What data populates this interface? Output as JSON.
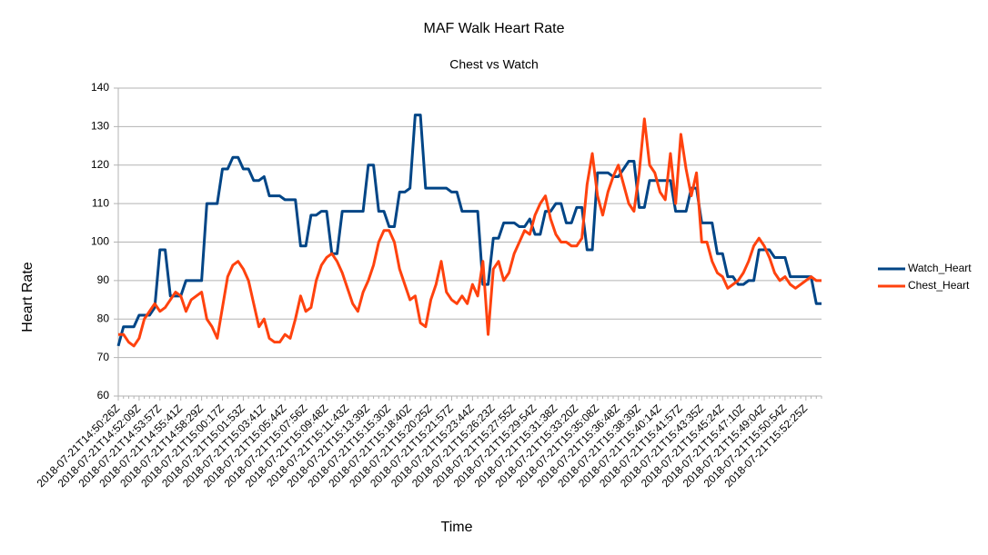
{
  "chart_data": {
    "type": "line",
    "title": "MAF Walk Heart Rate",
    "subtitle": "Chest vs Watch",
    "x_label": "Time",
    "y_label": "Heart Rate",
    "categories": [
      "2018-07-21T14:50:26Z",
      null,
      null,
      null,
      "2018-07-21T14:52:09Z",
      null,
      null,
      null,
      "2018-07-21T14:53:57Z",
      null,
      null,
      null,
      "2018-07-21T14:55:41Z",
      null,
      null,
      null,
      "2018-07-21T14:58:29Z",
      null,
      null,
      null,
      "2018-07-21T15:00:17Z",
      null,
      null,
      null,
      "2018-07-21T15:01:53Z",
      null,
      null,
      null,
      "2018-07-21T15:03:41Z",
      null,
      null,
      null,
      "2018-07-21T15:05:44Z",
      null,
      null,
      null,
      "2018-07-21T15:07:56Z",
      null,
      null,
      null,
      "2018-07-21T15:09:48Z",
      null,
      null,
      null,
      "2018-07-21T15:11:43Z",
      null,
      null,
      null,
      "2018-07-21T15:13:39Z",
      null,
      null,
      null,
      "2018-07-21T15:15:30Z",
      null,
      null,
      null,
      "2018-07-21T15:18:40Z",
      null,
      null,
      null,
      "2018-07-21T15:20:25Z",
      null,
      null,
      null,
      "2018-07-21T15:21:57Z",
      null,
      null,
      null,
      "2018-07-21T15:23:44Z",
      null,
      null,
      null,
      "2018-07-21T15:26:23Z",
      null,
      null,
      null,
      "2018-07-21T15:27:55Z",
      null,
      null,
      null,
      "2018-07-21T15:29:54Z",
      null,
      null,
      null,
      "2018-07-21T15:31:38Z",
      null,
      null,
      null,
      "2018-07-21T15:33:20Z",
      null,
      null,
      null,
      "2018-07-21T15:35:08Z",
      null,
      null,
      null,
      "2018-07-21T15:36:48Z",
      null,
      null,
      null,
      "2018-07-21T15:38:39Z",
      null,
      null,
      null,
      "2018-07-21T15:40:14Z",
      null,
      null,
      null,
      "2018-07-21T15:41:57Z",
      null,
      null,
      null,
      "2018-07-21T15:43:35Z",
      null,
      null,
      null,
      "2018-07-21T15:45:24Z",
      null,
      null,
      null,
      "2018-07-21T15:47:10Z",
      null,
      null,
      null,
      "2018-07-21T15:49:04Z",
      null,
      null,
      null,
      "2018-07-21T15:50:54Z",
      null,
      null,
      null,
      "2018-07-21T15:52:25Z",
      null,
      null,
      null
    ],
    "series": [
      {
        "name": "Watch_Heart",
        "color": "#004586",
        "values": [
          73,
          78,
          78,
          78,
          81,
          81,
          81,
          83,
          98,
          98,
          86,
          86,
          86,
          90,
          90,
          90,
          90,
          110,
          110,
          110,
          119,
          119,
          122,
          122,
          119,
          119,
          116,
          116,
          117,
          112,
          112,
          112,
          111,
          111,
          111,
          99,
          99,
          107,
          107,
          108,
          108,
          97,
          97,
          108,
          108,
          108,
          108,
          108,
          120,
          120,
          108,
          108,
          104,
          104,
          113,
          113,
          114,
          133,
          133,
          114,
          114,
          114,
          114,
          114,
          113,
          113,
          108,
          108,
          108,
          108,
          89,
          89,
          101,
          101,
          105,
          105,
          105,
          104,
          104,
          106,
          102,
          102,
          108,
          108,
          110,
          110,
          105,
          105,
          109,
          109,
          98,
          98,
          118,
          118,
          118,
          117,
          117,
          119,
          121,
          121,
          109,
          109,
          116,
          116,
          116,
          116,
          116,
          108,
          108,
          108,
          114,
          114,
          105,
          105,
          105,
          97,
          97,
          91,
          91,
          89,
          89,
          90,
          90,
          98,
          98,
          98,
          96,
          96,
          96,
          91,
          91,
          91,
          91,
          91,
          84,
          84
        ]
      },
      {
        "name": "Chest_Heart",
        "color": "#ff420e",
        "values": [
          76,
          76,
          74,
          73,
          75,
          80,
          82,
          84,
          82,
          83,
          85,
          87,
          86,
          82,
          85,
          86,
          87,
          80,
          78,
          75,
          83,
          91,
          94,
          95,
          93,
          90,
          84,
          78,
          80,
          75,
          74,
          74,
          76,
          75,
          80,
          86,
          82,
          83,
          90,
          94,
          96,
          97,
          95,
          92,
          88,
          84,
          82,
          87,
          90,
          94,
          100,
          103,
          103,
          100,
          93,
          89,
          85,
          86,
          79,
          78,
          85,
          89,
          95,
          87,
          85,
          84,
          86,
          84,
          89,
          86,
          95,
          76,
          93,
          95,
          90,
          92,
          97,
          100,
          103,
          102,
          107,
          110,
          112,
          106,
          102,
          100,
          100,
          99,
          99,
          101,
          115,
          123,
          112,
          107,
          113,
          117,
          120,
          115,
          110,
          108,
          118,
          132,
          120,
          118,
          113,
          111,
          123,
          110,
          128,
          119,
          112,
          118,
          100,
          100,
          95,
          92,
          91,
          88,
          89,
          90,
          92,
          95,
          99,
          101,
          99,
          96,
          92,
          90,
          91,
          89,
          88,
          89,
          90,
          91,
          90,
          90
        ]
      }
    ],
    "ylim": [
      60,
      140
    ],
    "yticks": [
      60,
      70,
      80,
      90,
      100,
      110,
      120,
      130,
      140
    ],
    "grid": true,
    "legend": "right"
  }
}
